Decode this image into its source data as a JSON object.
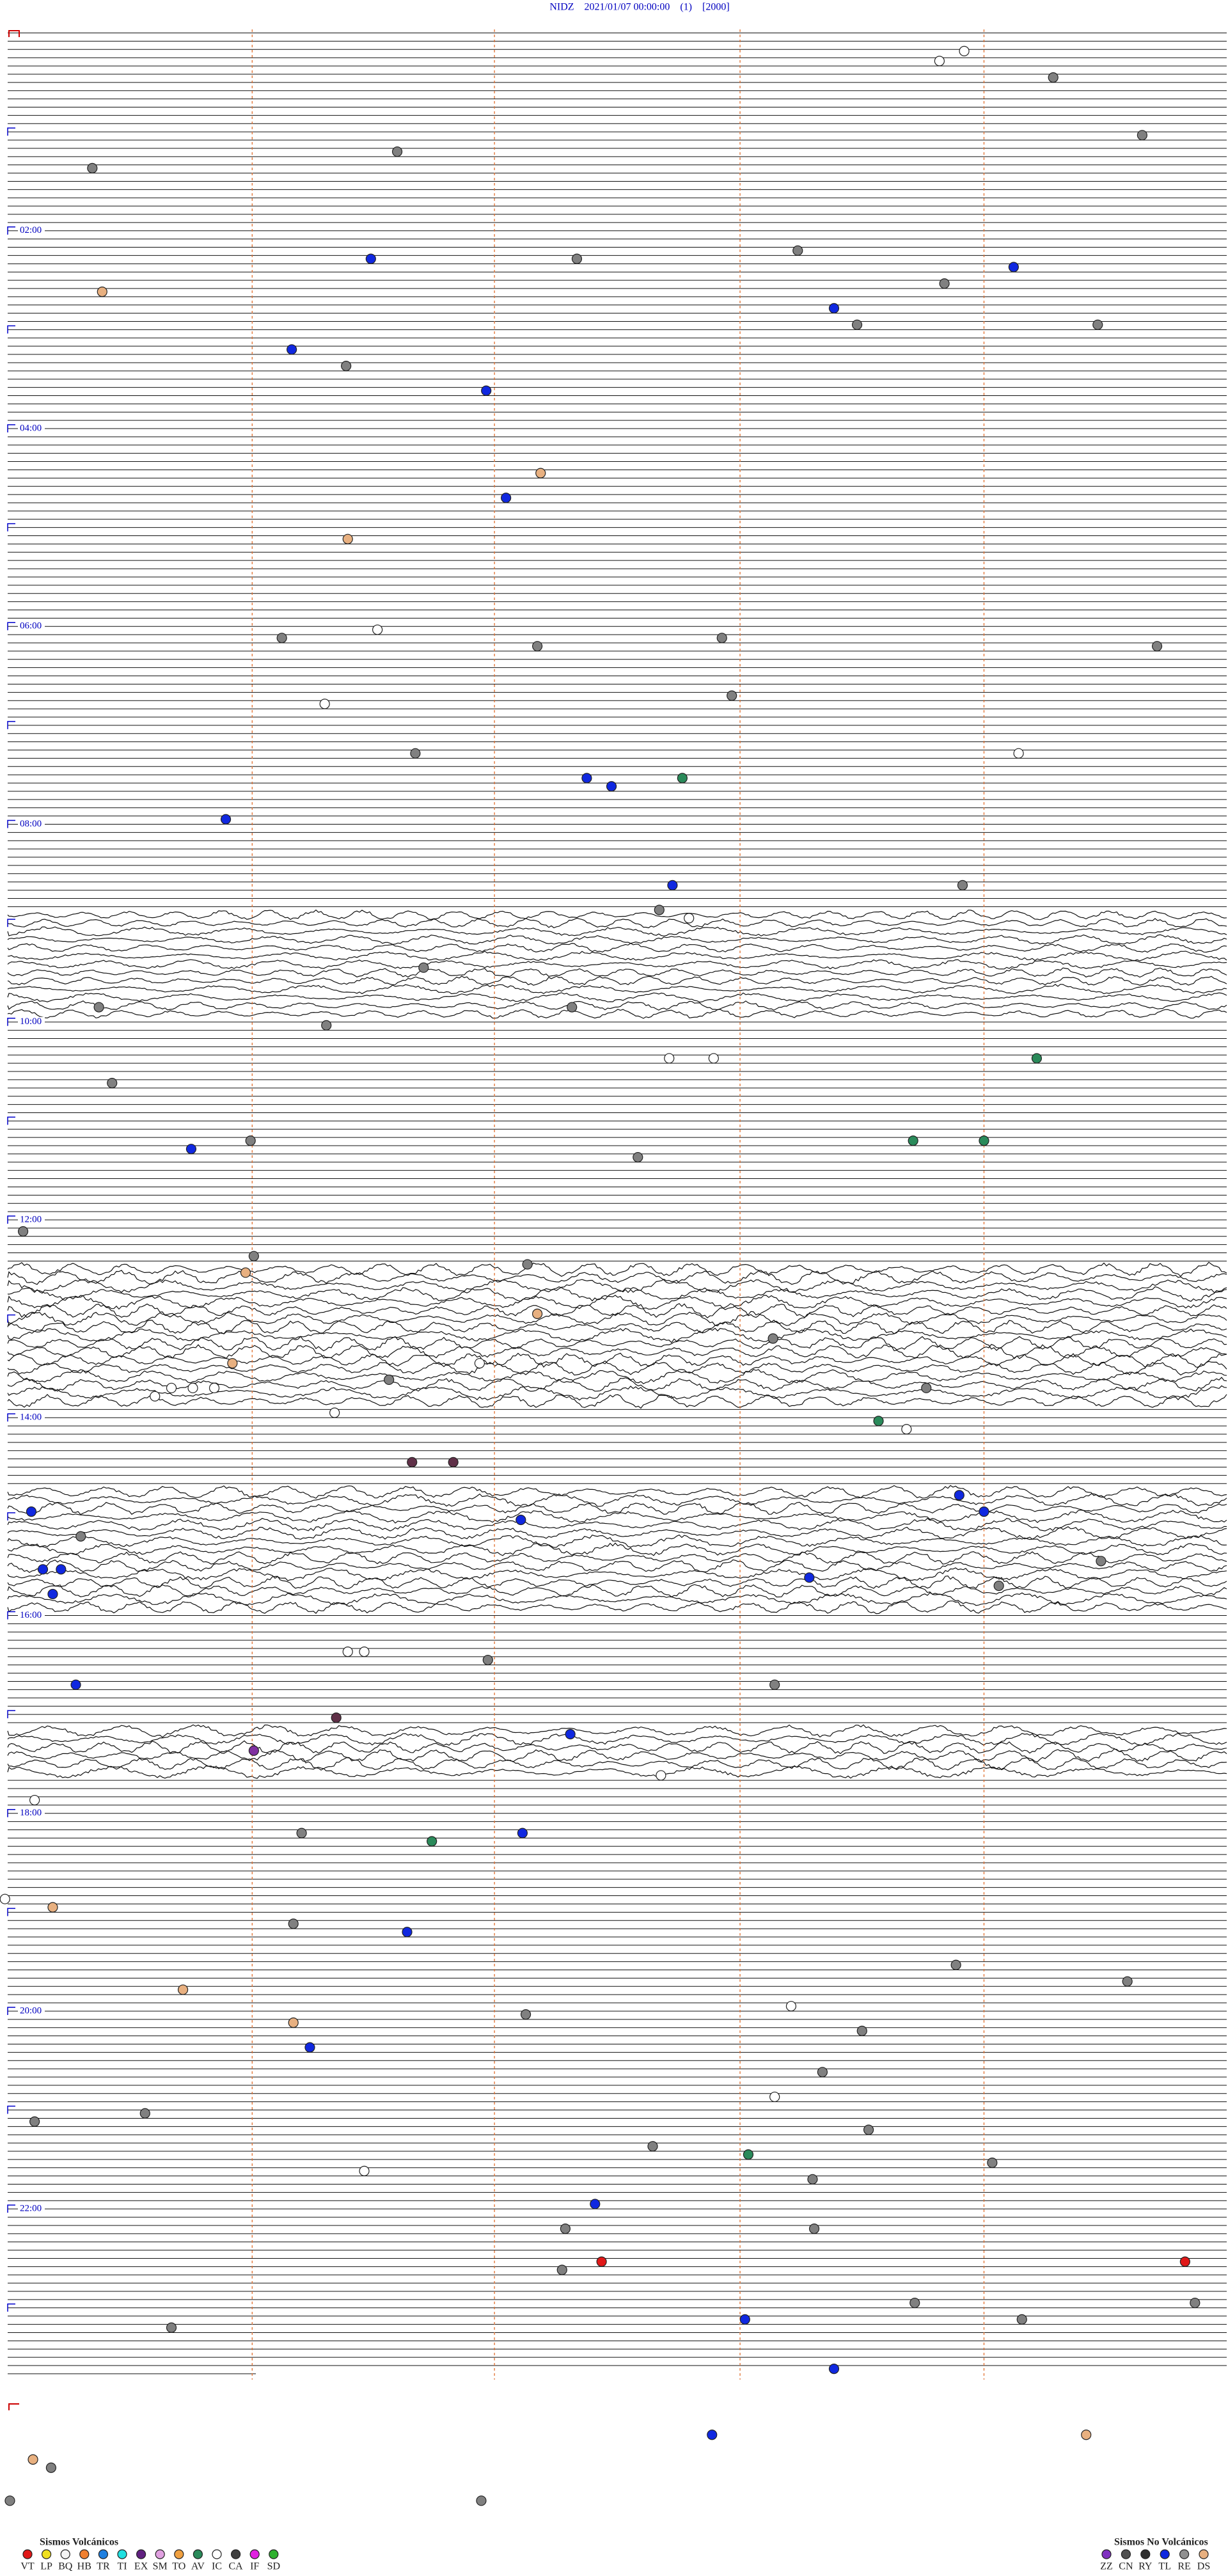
{
  "title": "NIDZ    2021/01/07 00:00:00    (1)    [2000]",
  "hour_labels": [
    "02:00",
    "04:00",
    "06:00",
    "08:00",
    "10:00",
    "12:00",
    "14:00",
    "16:00",
    "18:00",
    "20:00",
    "22:00"
  ],
  "legend": {
    "volcanic": {
      "title": "Sismos Volcánicos",
      "items": [
        "VT",
        "LP",
        "BQ",
        "HB",
        "TR",
        "TI",
        "EX",
        "SM",
        "TO",
        "AV",
        "IC",
        "CA",
        "IF",
        "SD"
      ]
    },
    "non_volcanic": {
      "title": "Sismos No Volcánicos",
      "items": [
        "ZZ",
        "CN",
        "RY",
        "TL",
        "RE",
        "DS"
      ]
    }
  }
}
